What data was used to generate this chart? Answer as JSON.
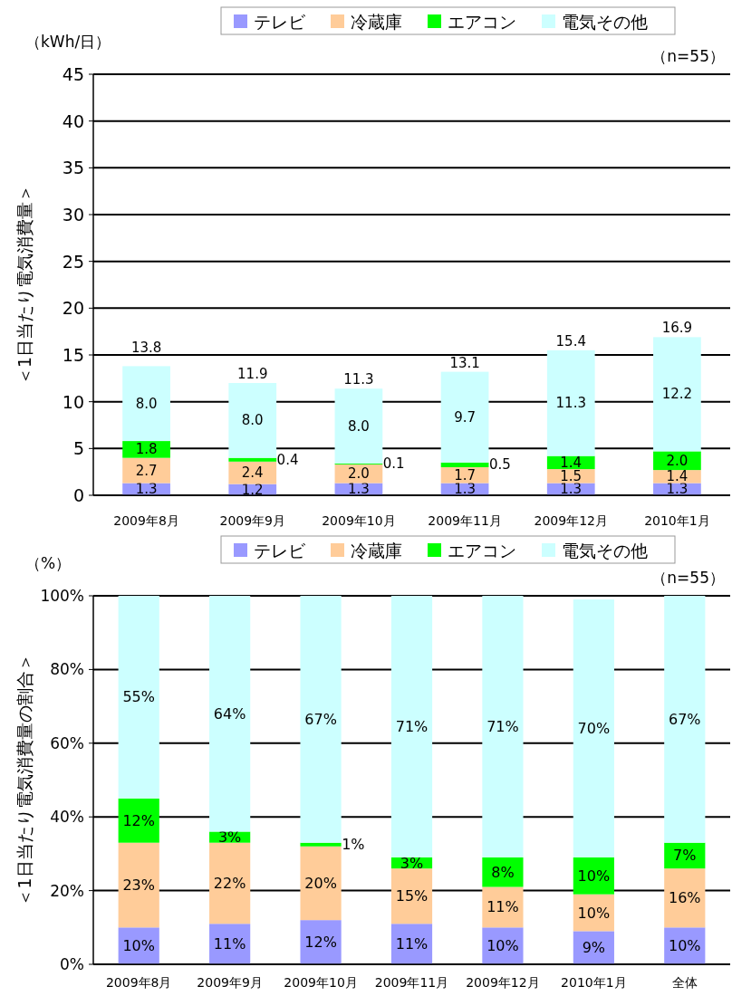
{
  "chart_data": [
    {
      "type": "bar",
      "stacked": true,
      "ylabel": "＜1日当たり電気消費量＞",
      "annotations": [
        "（kWh/日）",
        "（n=55）"
      ],
      "categories": [
        "2009年8月",
        "2009年9月",
        "2009年10月",
        "2009年11月",
        "2009年12月",
        "2010年1月"
      ],
      "series": [
        {
          "name": "テレビ",
          "color": "#9999ff",
          "values": [
            1.3,
            1.2,
            1.3,
            1.3,
            1.3,
            1.3
          ],
          "value_labels": [
            "1.3",
            "1.2",
            "1.3",
            "1.3",
            "1.3",
            "1.3"
          ]
        },
        {
          "name": "冷蔵庫",
          "color": "#ffcc99",
          "values": [
            2.7,
            2.4,
            2.0,
            1.7,
            1.5,
            1.4
          ],
          "value_labels": [
            "2.7",
            "2.4",
            "2.0",
            "1.7",
            "1.5",
            "1.4"
          ]
        },
        {
          "name": "エアコン",
          "color": "#00ff00",
          "values": [
            1.8,
            0.4,
            0.1,
            0.5,
            1.4,
            2.0
          ],
          "value_labels": [
            "1.8",
            "0.4",
            "0.1",
            "0.5",
            "1.4",
            "2.0"
          ]
        },
        {
          "name": "電気その他",
          "color": "#ccffff",
          "values": [
            8.0,
            8.0,
            8.0,
            9.7,
            11.3,
            12.2
          ],
          "value_labels": [
            "8.0",
            "8.0",
            "8.0",
            "9.7",
            "11.3",
            "12.2"
          ]
        }
      ],
      "totals": [
        "13.8",
        "11.9",
        "11.3",
        "13.1",
        "15.4",
        "16.9"
      ],
      "ylim": [
        0,
        45
      ],
      "yticks": [
        0,
        5,
        10,
        15,
        20,
        25,
        30,
        35,
        40,
        45
      ],
      "grid": "y",
      "legend": "top"
    },
    {
      "type": "bar",
      "stacked": true,
      "ylabel": "＜1日当たり電気消費量の割合＞",
      "annotations": [
        "（%）",
        "（n=55）"
      ],
      "categories": [
        "2009年8月",
        "2009年9月",
        "2009年10月",
        "2009年11月",
        "2009年12月",
        "2010年1月",
        "全体"
      ],
      "series": [
        {
          "name": "テレビ",
          "color": "#9999ff",
          "values": [
            10,
            11,
            12,
            11,
            10,
            9,
            10
          ],
          "value_labels": [
            "10%",
            "11%",
            "12%",
            "11%",
            "10%",
            "9%",
            "10%"
          ]
        },
        {
          "name": "冷蔵庫",
          "color": "#ffcc99",
          "values": [
            23,
            22,
            20,
            15,
            11,
            10,
            16
          ],
          "value_labels": [
            "23%",
            "22%",
            "20%",
            "15%",
            "11%",
            "10%",
            "16%"
          ]
        },
        {
          "name": "エアコン",
          "color": "#00ff00",
          "values": [
            12,
            3,
            1,
            3,
            8,
            10,
            7
          ],
          "value_labels": [
            "12%",
            "3%",
            "1%",
            "3%",
            "8%",
            "10%",
            "7%"
          ]
        },
        {
          "name": "電気その他",
          "color": "#ccffff",
          "values": [
            55,
            64,
            67,
            71,
            71,
            70,
            67
          ],
          "value_labels": [
            "55%",
            "64%",
            "67%",
            "71%",
            "71%",
            "70%",
            "67%"
          ]
        }
      ],
      "ylim": [
        0,
        100
      ],
      "yticks": [
        {
          "value": 0,
          "label": "0%"
        },
        {
          "value": 20,
          "label": "20%"
        },
        {
          "value": 40,
          "label": "40%"
        },
        {
          "value": 60,
          "label": "60%"
        },
        {
          "value": 80,
          "label": "80%"
        },
        {
          "value": 100,
          "label": "100%"
        }
      ],
      "grid": "y",
      "legend": "top"
    }
  ]
}
